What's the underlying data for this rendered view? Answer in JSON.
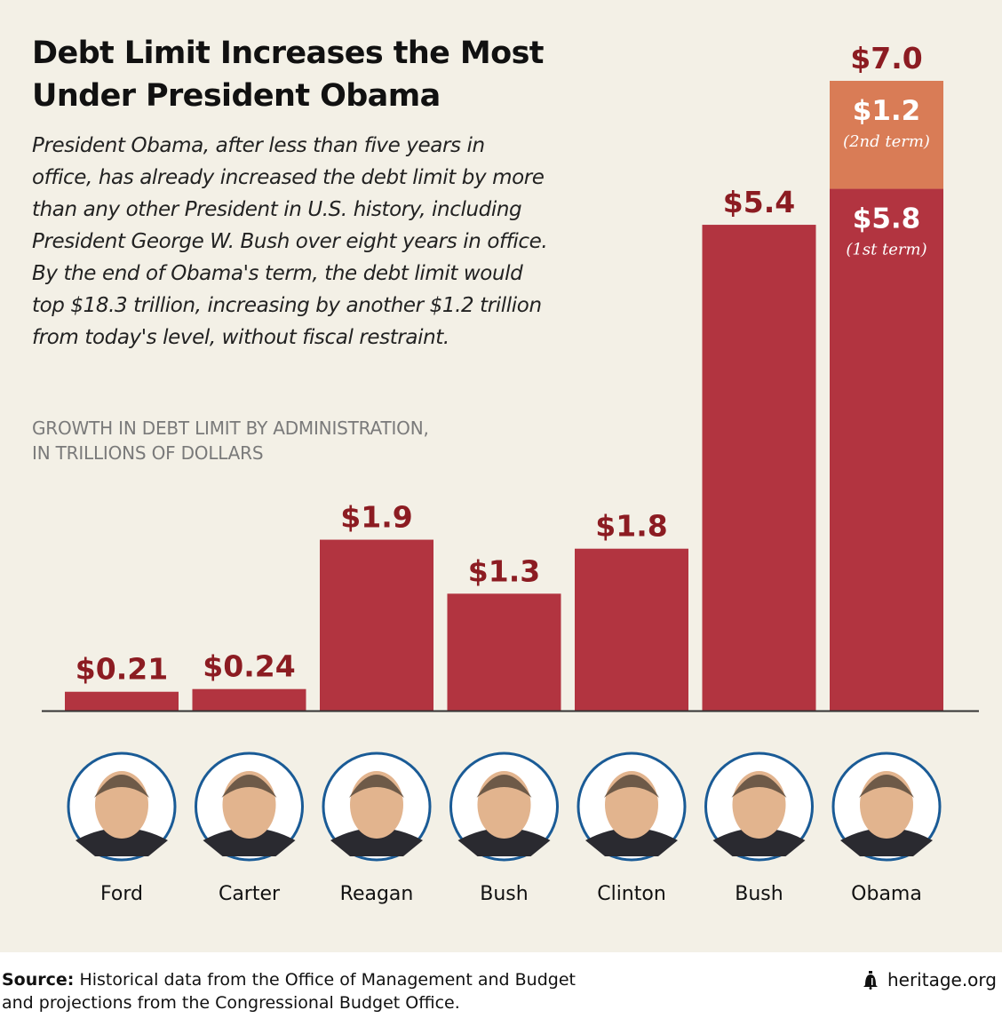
{
  "header": {
    "title_line1": "Debt Limit Increases the Most",
    "title_line2": "Under President Obama",
    "description": [
      "President Obama, after less than five years in",
      "office, has already increased the debt limit by more",
      "than any other President in U.S. history, including",
      "President George W. Bush over eight years in office.",
      "By the end of Obama's term, the debt limit would",
      "top $18.3 trillion, increasing by another $1.2 trillion",
      "from today's level, without fiscal restraint."
    ],
    "subtitle_line1": "GROWTH IN DEBT LIMIT BY ADMINISTRATION,",
    "subtitle_line2": "IN TRILLIONS OF DOLLARS"
  },
  "colors": {
    "background": "#f3f0e6",
    "bar": "#b23440",
    "bar_second_term": "#d97c56",
    "value_label": "#8c1c22",
    "inner_label": "#ffffff",
    "ring": "#1a5b96",
    "axis": "#333333"
  },
  "chart_data": {
    "type": "bar",
    "stacked": true,
    "title": "Debt Limit Increases the Most Under President Obama",
    "ylabel": "GROWTH IN DEBT LIMIT BY ADMINISTRATION, IN TRILLIONS OF DOLLARS",
    "ylim": [
      0,
      7.0
    ],
    "grid": false,
    "categories": [
      "Ford",
      "Carter",
      "Reagan",
      "Bush",
      "Clinton",
      "Bush",
      "Obama"
    ],
    "series": [
      {
        "name": "1st term / full tenure",
        "values": [
          0.21,
          0.24,
          1.9,
          1.3,
          1.8,
          5.4,
          5.8
        ]
      },
      {
        "name": "2nd term",
        "values": [
          0,
          0,
          0,
          0,
          0,
          0,
          1.2
        ]
      }
    ],
    "total_labels": [
      "$0.21",
      "$0.24",
      "$1.9",
      "$1.3",
      "$1.8",
      "$5.4",
      "$7.0"
    ],
    "segment_labels": [
      {
        "category": "Obama",
        "segment": "1st term",
        "value": "$5.8",
        "note": "(1st term)"
      },
      {
        "category": "Obama",
        "segment": "2nd term",
        "value": "$1.2",
        "note": "(2nd term)"
      }
    ]
  },
  "presidents": [
    {
      "name": "Ford",
      "portrait": "ford-portrait"
    },
    {
      "name": "Carter",
      "portrait": "carter-portrait"
    },
    {
      "name": "Reagan",
      "portrait": "reagan-portrait"
    },
    {
      "name": "Bush",
      "portrait": "bush-sr-portrait"
    },
    {
      "name": "Clinton",
      "portrait": "clinton-portrait"
    },
    {
      "name": "Bush",
      "portrait": "bush-jr-portrait"
    },
    {
      "name": "Obama",
      "portrait": "obama-portrait"
    }
  ],
  "footer": {
    "source_label": "Source:",
    "source_text_line1": "Historical data from the Office of Management and Budget",
    "source_text_line2": "and projections from the Congressional Budget Office.",
    "brand_icon": "liberty-bell-icon",
    "brand": "heritage.org"
  }
}
